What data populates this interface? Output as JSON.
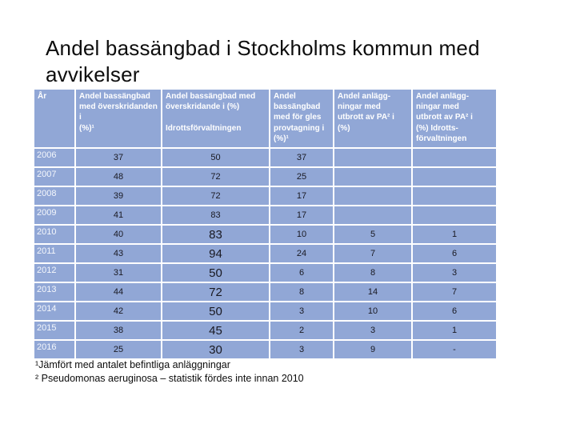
{
  "slide": {
    "title": "Andel bassängbad i Stockholms kommun med\navvikelser",
    "footnotes": [
      "¹Jämfört med antalet befintliga anläggningar",
      "² Pseudomonas aeruginosa – statistik fördes inte innan 2010"
    ]
  },
  "colors": {
    "cell_fill": "#91a7d6",
    "header_text": "#ffffff",
    "data_text": "#191922"
  },
  "chart_data": {
    "type": "table",
    "columns": [
      "År",
      "Andel bassängbad\nmed överskridanden i\n(%)¹",
      "Andel bassängbad med\növerskridande i (%)\n\nIdrottsförvaltningen",
      "Andel\nbassängbad\nmed för gles\nprovtagning i\n(%)¹",
      "Andel anlägg-\nningar med\nutbrott av PA² i\n(%)",
      "Andel anlägg-\nningar med\nutbrott av PA² i\n(%) Idrotts-\nförvaltningen"
    ],
    "rows": [
      {
        "year": "2006",
        "values": [
          "37",
          "50",
          "37",
          "",
          ""
        ],
        "emphasized": false
      },
      {
        "year": "2007",
        "values": [
          "48",
          "72",
          "25",
          "",
          ""
        ],
        "emphasized": false
      },
      {
        "year": "2008",
        "values": [
          "39",
          "72",
          "17",
          "",
          ""
        ],
        "emphasized": false
      },
      {
        "year": "2009",
        "values": [
          "41",
          "83",
          "17",
          "",
          ""
        ],
        "emphasized": false
      },
      {
        "year": "2010",
        "values": [
          "40",
          "83",
          "10",
          "5",
          "1"
        ],
        "emphasized": true
      },
      {
        "year": "2011",
        "values": [
          "43",
          "94",
          "24",
          "7",
          "6"
        ],
        "emphasized": true
      },
      {
        "year": "2012",
        "values": [
          "31",
          "50",
          "6",
          "8",
          "3"
        ],
        "emphasized": true
      },
      {
        "year": "2013",
        "values": [
          "44",
          "72",
          "8",
          "14",
          "7"
        ],
        "emphasized": true
      },
      {
        "year": "2014",
        "values": [
          "42",
          "50",
          "3",
          "10",
          "6"
        ],
        "emphasized": true
      },
      {
        "year": "2015",
        "values": [
          "38",
          "45",
          "2",
          "3",
          "1"
        ],
        "emphasized": true
      },
      {
        "year": "2016",
        "values": [
          "25",
          "30",
          "3",
          "9",
          "-"
        ],
        "emphasized": true
      }
    ]
  }
}
